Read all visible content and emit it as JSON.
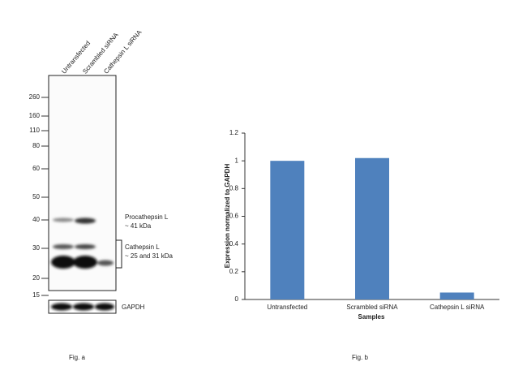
{
  "blot": {
    "lanes": [
      "Untransfected",
      "Scrambled siRNA",
      "Cathepsin L siRNA"
    ],
    "markers": [
      "260",
      "160",
      "110",
      "80",
      "60",
      "50",
      "40",
      "30",
      "20",
      "15"
    ],
    "annotations": {
      "procathepsin": "Procathepsin L",
      "procathepsin_size": "~ 41  kDa",
      "cathepsin": "Cathepsin L",
      "cathepsin_size": "~ 25 and 31 kDa"
    },
    "loading_control": "GAPDH",
    "caption": "Fig. a"
  },
  "chart_data": {
    "type": "bar",
    "categories": [
      "Untransfected",
      "Scrambled siRNA",
      "Cathepsin L siRNA"
    ],
    "values": [
      1.0,
      1.02,
      0.05
    ],
    "color": "#4f81bd",
    "x_label": "Samples",
    "y_label": "Expression normalized to GAPDH",
    "ylim": [
      0,
      1.2
    ],
    "yticks": [
      0,
      0.2,
      0.4,
      0.6,
      0.8,
      1,
      1.2
    ],
    "caption": "Fig. b"
  }
}
